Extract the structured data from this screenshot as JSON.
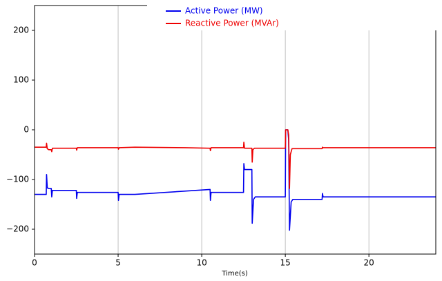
{
  "chart_data": {
    "type": "line",
    "xlabel": "Time(s)",
    "xlim": [
      0,
      24
    ],
    "xticks": [
      0,
      5,
      10,
      15,
      20
    ],
    "ylim": [
      -250,
      250
    ],
    "yticks": [
      {
        "value": -200,
        "label": "−200"
      },
      {
        "value": -100,
        "label": "−100"
      },
      0,
      100,
      200
    ],
    "grid": "x",
    "legend": "upper right",
    "series": [
      {
        "name": "Active Power (MW)",
        "color": "#0000ee",
        "x": [
          0,
          0.7,
          0.72,
          0.76,
          0.8,
          1.0,
          1.03,
          1.07,
          2.5,
          2.52,
          2.56,
          5.0,
          5.02,
          5.06,
          6.0,
          10.5,
          10.52,
          10.56,
          12.5,
          12.52,
          12.56,
          13.0,
          13.02,
          13.1,
          13.2,
          15.0,
          15.02,
          15.15,
          15.2,
          15.25,
          15.35,
          15.45,
          17.2,
          17.22,
          17.26,
          24
        ],
        "values": [
          -130,
          -130,
          -90,
          -115,
          -118,
          -118,
          -135,
          -122,
          -122,
          -138,
          -126,
          -126,
          -142,
          -130,
          -130,
          -120,
          -142,
          -126,
          -126,
          -68,
          -80,
          -80,
          -188,
          -140,
          -135,
          -135,
          0,
          0,
          -20,
          -202,
          -145,
          -140,
          -140,
          -128,
          -135,
          -135
        ]
      },
      {
        "name": "Reactive Power (MVAr)",
        "color": "#ee0000",
        "x": [
          0,
          0.7,
          0.72,
          0.76,
          0.85,
          1.0,
          1.03,
          1.07,
          2.5,
          2.52,
          2.56,
          5.0,
          5.02,
          5.06,
          6.0,
          9.0,
          10.5,
          10.52,
          10.56,
          12.5,
          12.52,
          12.56,
          13.0,
          13.02,
          13.06,
          13.15,
          15.0,
          15.02,
          15.15,
          15.2,
          15.25,
          15.3,
          15.4,
          17.2,
          17.22,
          17.26,
          24
        ],
        "values": [
          -35,
          -35,
          -27,
          -38,
          -40,
          -40,
          -44,
          -37,
          -37,
          -41,
          -36,
          -36,
          -39,
          -36,
          -35,
          -36,
          -37,
          -42,
          -36,
          -36,
          -25,
          -37,
          -37,
          -65,
          -40,
          -37,
          -37,
          0,
          0,
          -10,
          -118,
          -50,
          -38,
          -38,
          -35,
          -36,
          -36
        ]
      }
    ]
  }
}
